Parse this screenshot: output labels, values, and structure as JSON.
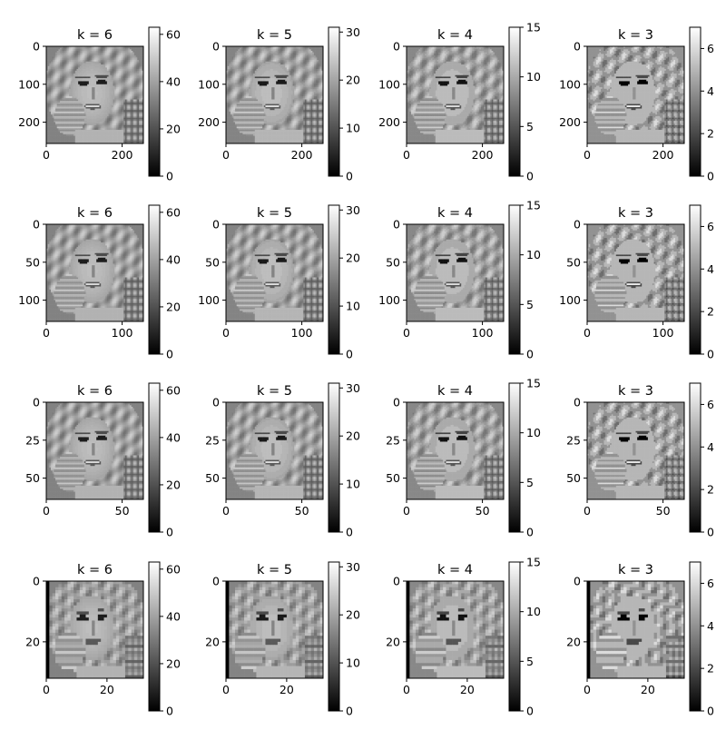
{
  "chart_data": [
    {
      "type": "heatmap",
      "title": "k = 6",
      "cmap": "gray",
      "image_size": 256,
      "xticks": [
        "0",
        "200"
      ],
      "yticks": [
        "0",
        "100",
        "200"
      ],
      "xlim": [
        0,
        256
      ],
      "ylim": [
        256,
        0
      ],
      "colorbar": {
        "ticks": [
          "0",
          "20",
          "40",
          "60"
        ],
        "range": [
          0,
          63
        ]
      }
    },
    {
      "type": "heatmap",
      "title": "k = 5",
      "cmap": "gray",
      "image_size": 256,
      "xticks": [
        "0",
        "200"
      ],
      "yticks": [
        "0",
        "100",
        "200"
      ],
      "xlim": [
        0,
        256
      ],
      "ylim": [
        256,
        0
      ],
      "colorbar": {
        "ticks": [
          "0",
          "10",
          "20",
          "30"
        ],
        "range": [
          0,
          31
        ]
      }
    },
    {
      "type": "heatmap",
      "title": "k = 4",
      "cmap": "gray",
      "image_size": 256,
      "xticks": [
        "0",
        "200"
      ],
      "yticks": [
        "0",
        "100",
        "200"
      ],
      "xlim": [
        0,
        256
      ],
      "ylim": [
        256,
        0
      ],
      "colorbar": {
        "ticks": [
          "0",
          "5",
          "10",
          "15"
        ],
        "range": [
          0,
          15
        ]
      }
    },
    {
      "type": "heatmap",
      "title": "k = 3",
      "cmap": "gray",
      "image_size": 256,
      "xticks": [
        "0",
        "200"
      ],
      "yticks": [
        "0",
        "100",
        "200"
      ],
      "xlim": [
        0,
        256
      ],
      "ylim": [
        256,
        0
      ],
      "colorbar": {
        "ticks": [
          "0",
          "2",
          "4",
          "6"
        ],
        "range": [
          0,
          7
        ]
      }
    },
    {
      "type": "heatmap",
      "title": "k = 6",
      "cmap": "gray",
      "image_size": 128,
      "xticks": [
        "0",
        "100"
      ],
      "yticks": [
        "0",
        "50",
        "100"
      ],
      "xlim": [
        0,
        128
      ],
      "ylim": [
        128,
        0
      ],
      "colorbar": {
        "ticks": [
          "0",
          "20",
          "40",
          "60"
        ],
        "range": [
          0,
          63
        ]
      }
    },
    {
      "type": "heatmap",
      "title": "k = 5",
      "cmap": "gray",
      "image_size": 128,
      "xticks": [
        "0",
        "100"
      ],
      "yticks": [
        "0",
        "50",
        "100"
      ],
      "xlim": [
        0,
        128
      ],
      "ylim": [
        128,
        0
      ],
      "colorbar": {
        "ticks": [
          "0",
          "10",
          "20",
          "30"
        ],
        "range": [
          0,
          31
        ]
      }
    },
    {
      "type": "heatmap",
      "title": "k = 4",
      "cmap": "gray",
      "image_size": 128,
      "xticks": [
        "0",
        "100"
      ],
      "yticks": [
        "0",
        "50",
        "100"
      ],
      "xlim": [
        0,
        128
      ],
      "ylim": [
        128,
        0
      ],
      "colorbar": {
        "ticks": [
          "0",
          "5",
          "10",
          "15"
        ],
        "range": [
          0,
          15
        ]
      }
    },
    {
      "type": "heatmap",
      "title": "k = 3",
      "cmap": "gray",
      "image_size": 128,
      "xticks": [
        "0",
        "100"
      ],
      "yticks": [
        "0",
        "50",
        "100"
      ],
      "xlim": [
        0,
        128
      ],
      "ylim": [
        128,
        0
      ],
      "colorbar": {
        "ticks": [
          "0",
          "2",
          "4",
          "6"
        ],
        "range": [
          0,
          7
        ]
      }
    },
    {
      "type": "heatmap",
      "title": "k = 6",
      "cmap": "gray",
      "image_size": 64,
      "xticks": [
        "0",
        "50"
      ],
      "yticks": [
        "0",
        "25",
        "50"
      ],
      "xlim": [
        0,
        64
      ],
      "ylim": [
        64,
        0
      ],
      "colorbar": {
        "ticks": [
          "0",
          "20",
          "40",
          "60"
        ],
        "range": [
          0,
          63
        ]
      }
    },
    {
      "type": "heatmap",
      "title": "k = 5",
      "cmap": "gray",
      "image_size": 64,
      "xticks": [
        "0",
        "50"
      ],
      "yticks": [
        "0",
        "25",
        "50"
      ],
      "xlim": [
        0,
        64
      ],
      "ylim": [
        64,
        0
      ],
      "colorbar": {
        "ticks": [
          "0",
          "10",
          "20",
          "30"
        ],
        "range": [
          0,
          31
        ]
      }
    },
    {
      "type": "heatmap",
      "title": "k = 4",
      "cmap": "gray",
      "image_size": 64,
      "xticks": [
        "0",
        "50"
      ],
      "yticks": [
        "0",
        "25",
        "50"
      ],
      "xlim": [
        0,
        64
      ],
      "ylim": [
        64,
        0
      ],
      "colorbar": {
        "ticks": [
          "0",
          "5",
          "10",
          "15"
        ],
        "range": [
          0,
          15
        ]
      }
    },
    {
      "type": "heatmap",
      "title": "k = 3",
      "cmap": "gray",
      "image_size": 64,
      "xticks": [
        "0",
        "50"
      ],
      "yticks": [
        "0",
        "25",
        "50"
      ],
      "xlim": [
        0,
        64
      ],
      "ylim": [
        64,
        0
      ],
      "colorbar": {
        "ticks": [
          "0",
          "2",
          "4",
          "6"
        ],
        "range": [
          0,
          7
        ]
      }
    },
    {
      "type": "heatmap",
      "title": "k = 6",
      "cmap": "gray",
      "image_size": 32,
      "xticks": [
        "0",
        "20"
      ],
      "yticks": [
        "0",
        "20"
      ],
      "xlim": [
        0,
        32
      ],
      "ylim": [
        32,
        0
      ],
      "colorbar": {
        "ticks": [
          "0",
          "20",
          "40",
          "60"
        ],
        "range": [
          0,
          63
        ]
      }
    },
    {
      "type": "heatmap",
      "title": "k = 5",
      "cmap": "gray",
      "image_size": 32,
      "xticks": [
        "0",
        "20"
      ],
      "yticks": [
        "0",
        "20"
      ],
      "xlim": [
        0,
        32
      ],
      "ylim": [
        32,
        0
      ],
      "colorbar": {
        "ticks": [
          "0",
          "10",
          "20",
          "30"
        ],
        "range": [
          0,
          31
        ]
      }
    },
    {
      "type": "heatmap",
      "title": "k = 4",
      "cmap": "gray",
      "image_size": 32,
      "xticks": [
        "0",
        "20"
      ],
      "yticks": [
        "0",
        "20"
      ],
      "xlim": [
        0,
        32
      ],
      "ylim": [
        32,
        0
      ],
      "colorbar": {
        "ticks": [
          "0",
          "5",
          "10",
          "15"
        ],
        "range": [
          0,
          15
        ]
      }
    },
    {
      "type": "heatmap",
      "title": "k = 3",
      "cmap": "gray",
      "image_size": 32,
      "xticks": [
        "0",
        "20"
      ],
      "yticks": [
        "0",
        "20"
      ],
      "xlim": [
        0,
        32
      ],
      "ylim": [
        32,
        0
      ],
      "colorbar": {
        "ticks": [
          "0",
          "2",
          "4",
          "6"
        ],
        "range": [
          0,
          7
        ]
      }
    }
  ]
}
